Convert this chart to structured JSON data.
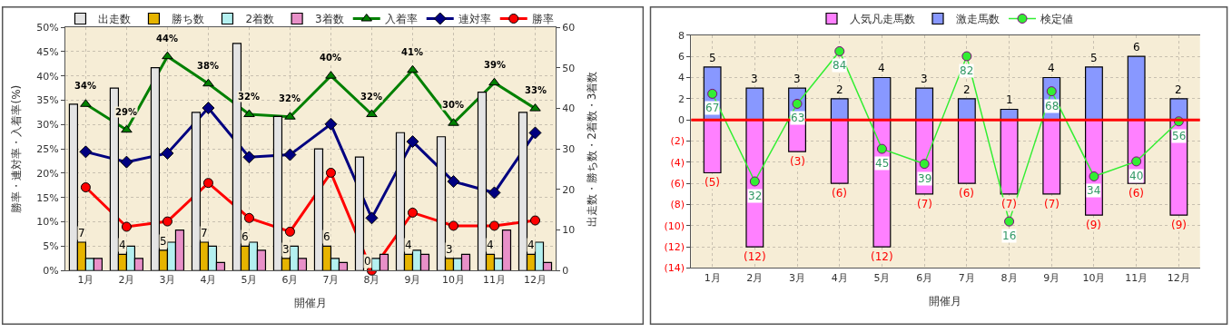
{
  "chart_data": [
    {
      "type": "bar",
      "xlabel": "開催月",
      "ylabel": "勝率・連対率・入着率(%)",
      "y2label": "出走数・勝ち数・2着数・3着数",
      "categories": [
        "1月",
        "2月",
        "3月",
        "4月",
        "5月",
        "6月",
        "7月",
        "8月",
        "9月",
        "10月",
        "11月",
        "12月"
      ],
      "series": [
        {
          "name": "出走数",
          "axis": "y2",
          "color": "#e4e4e4",
          "values": [
            41,
            45,
            50,
            39,
            56,
            38,
            30,
            28,
            34,
            33,
            44,
            39
          ]
        },
        {
          "name": "勝ち数",
          "axis": "y2",
          "color": "#e6b400",
          "values": [
            7,
            4,
            5,
            7,
            6,
            3,
            6,
            0,
            4,
            3,
            4,
            4
          ],
          "value_labels": [
            "7",
            "4",
            "5",
            "7",
            "6",
            "3",
            "6",
            "0",
            "4",
            "3",
            "4",
            "4"
          ]
        },
        {
          "name": "2着数",
          "axis": "y2",
          "color": "#b4f0f0",
          "values": [
            3,
            6,
            7,
            6,
            7,
            6,
            3,
            3,
            5,
            3,
            3,
            7
          ]
        },
        {
          "name": "3着数",
          "axis": "y2",
          "color": "#e890c8",
          "values": [
            3,
            3,
            10,
            2,
            5,
            3,
            2,
            4,
            4,
            4,
            10,
            2
          ]
        },
        {
          "name": "入着率",
          "type": "line",
          "color": "#008000",
          "marker": "triangle",
          "values": [
            34.2,
            28.9,
            44.0,
            38.4,
            32.1,
            31.6,
            40.0,
            32.1,
            41.2,
            30.3,
            38.6,
            33.3
          ],
          "value_labels": [
            "34%",
            "29%",
            "44%",
            "38%",
            "32%",
            "32%",
            "40%",
            "32%",
            "41%",
            "30%",
            "39%",
            "33%"
          ]
        },
        {
          "name": "連対率",
          "type": "line",
          "color": "#000080",
          "marker": "diamond",
          "values": [
            24.4,
            22.3,
            24.1,
            33.4,
            23.3,
            23.8,
            30.1,
            10.8,
            26.5,
            18.3,
            16.0,
            28.3
          ]
        },
        {
          "name": "勝率",
          "type": "line",
          "color": "#ff0000",
          "marker": "circle",
          "values": [
            17.1,
            9.0,
            10.1,
            18.0,
            10.8,
            8.0,
            20.1,
            0,
            11.9,
            9.2,
            9.2,
            10.3
          ]
        }
      ],
      "ylim": [
        0,
        50
      ],
      "yticks": [
        {
          "value": 0,
          "label": "0%"
        },
        {
          "value": 5,
          "label": "5%"
        },
        {
          "value": 10,
          "label": "10%"
        },
        {
          "value": 15,
          "label": "15%"
        },
        {
          "value": 20,
          "label": "20%"
        },
        {
          "value": 25,
          "label": "25%"
        },
        {
          "value": 30,
          "label": "30%"
        },
        {
          "value": 35,
          "label": "35%"
        },
        {
          "value": 40,
          "label": "40%"
        },
        {
          "value": 45,
          "label": "45%"
        },
        {
          "value": 50,
          "label": "50%"
        }
      ],
      "y2lim": [
        0,
        60
      ],
      "y2ticks": [
        0,
        10,
        20,
        30,
        40,
        50,
        60
      ],
      "grid": true,
      "legend": "top"
    },
    {
      "type": "bar",
      "xlabel": "開催月",
      "stacked": true,
      "categories": [
        "1月",
        "2月",
        "3月",
        "4月",
        "5月",
        "6月",
        "7月",
        "8月",
        "9月",
        "10月",
        "11月",
        "12月"
      ],
      "series": [
        {
          "name": "人気凡走馬数",
          "color": "#ff80ff",
          "values": [
            -5,
            -12,
            -3,
            -6,
            -12,
            -7,
            -6,
            -7,
            -7,
            -9,
            -6,
            -9
          ],
          "value_labels": [
            "(5)",
            "(12)",
            "(3)",
            "(6)",
            "(12)",
            "(7)",
            "(6)",
            "(7)",
            "(7)",
            "(9)",
            "(6)",
            "(9)"
          ]
        },
        {
          "name": "激走馬数",
          "color": "#8898ff",
          "values": [
            5,
            3,
            3,
            2,
            4,
            3,
            2,
            1,
            4,
            5,
            6,
            2
          ],
          "value_labels": [
            "5",
            "3",
            "3",
            "2",
            "4",
            "3",
            "2",
            "1",
            "4",
            "5",
            "6",
            "2"
          ]
        },
        {
          "name": "検定値",
          "type": "line",
          "axis": "y2",
          "color": "#33ee33",
          "marker": "circle",
          "values": [
            67,
            32,
            63,
            84,
            45,
            39,
            82,
            16,
            68,
            34,
            40,
            56
          ],
          "value_labels": [
            "67",
            "32",
            "63",
            "84",
            "45",
            "39",
            "82",
            "16",
            "68",
            "34",
            "40",
            "56"
          ]
        }
      ],
      "ylim": [
        -14,
        8
      ],
      "yticks": [
        {
          "value": -14,
          "label": "(14)"
        },
        {
          "value": -12,
          "label": "(12)"
        },
        {
          "value": -10,
          "label": "(10)"
        },
        {
          "value": -8,
          "label": "(8)"
        },
        {
          "value": -6,
          "label": "(6)"
        },
        {
          "value": -4,
          "label": "(4)"
        },
        {
          "value": -2,
          "label": "(2)"
        },
        0,
        2,
        4,
        6,
        8
      ],
      "y2lim": [
        -2.6,
        90.4
      ],
      "tick_labels": "xy",
      "ref_lines": [
        {
          "axis": "y",
          "value": 0,
          "color": "#ff0000"
        }
      ],
      "grid": true,
      "legend": "top"
    }
  ]
}
